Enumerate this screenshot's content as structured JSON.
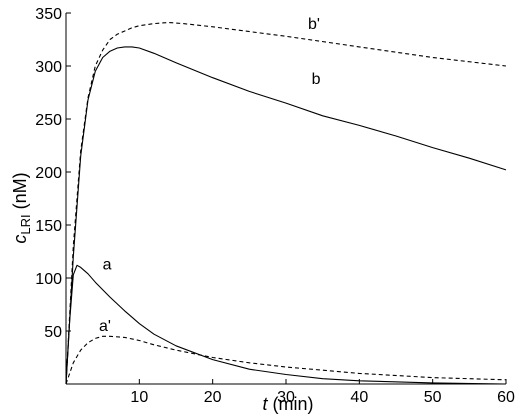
{
  "chart_data": {
    "type": "line",
    "xlabel_var": "t",
    "xlabel_unit": " (min)",
    "ylabel_var": "c",
    "ylabel_sub": "LRI",
    "ylabel_unit": " (nM)",
    "xlim": [
      0,
      60
    ],
    "ylim": [
      0,
      350
    ],
    "grid": false,
    "x_ticks": [
      10,
      20,
      30,
      40,
      50,
      60
    ],
    "y_ticks": [
      50,
      100,
      150,
      200,
      250,
      300,
      350
    ],
    "series": [
      {
        "name": "b'",
        "style": "dashed",
        "color": "#000000",
        "x": [
          0,
          1,
          2,
          3,
          4,
          5,
          6,
          7,
          8,
          9,
          10,
          12,
          14,
          16,
          20,
          30,
          40,
          50,
          60
        ],
        "y": [
          0,
          130,
          220,
          270,
          300,
          315,
          325,
          330,
          333,
          336,
          338,
          340,
          341,
          340,
          337,
          328,
          318,
          308,
          300
        ]
      },
      {
        "name": "b",
        "style": "solid",
        "color": "#000000",
        "x": [
          0,
          1,
          2,
          3,
          4,
          5,
          6,
          7,
          8,
          9,
          10,
          12,
          15,
          20,
          25,
          30,
          35,
          40,
          45,
          50,
          55,
          60
        ],
        "y": [
          0,
          120,
          215,
          268,
          295,
          308,
          314,
          317,
          318,
          318,
          317,
          312,
          303,
          289,
          276,
          265,
          253,
          244,
          234,
          223,
          213,
          202
        ]
      },
      {
        "name": "a",
        "style": "solid",
        "color": "#000000",
        "x": [
          0,
          0.5,
          1,
          1.5,
          2,
          3,
          4,
          5,
          6,
          8,
          10,
          12,
          15,
          20,
          25,
          30,
          35,
          40,
          50,
          60
        ],
        "y": [
          0,
          60,
          103,
          112,
          110,
          104,
          96,
          89,
          82,
          69,
          57,
          47,
          36,
          23,
          14,
          9,
          5,
          3,
          1,
          0
        ]
      },
      {
        "name": "a'",
        "style": "dashed",
        "color": "#000000",
        "x": [
          0,
          1,
          2,
          3,
          4,
          5,
          6,
          8,
          10,
          12,
          15,
          20,
          25,
          30,
          40,
          50,
          60
        ],
        "y": [
          0,
          20,
          32,
          39,
          43,
          45,
          45,
          44,
          41,
          37,
          32,
          25,
          20,
          16,
          10,
          6,
          4
        ]
      }
    ],
    "annotations": [
      {
        "text": "b'",
        "x": 33,
        "y": 335
      },
      {
        "text": "b",
        "x": 33.5,
        "y": 283
      },
      {
        "text": "a",
        "x": 5,
        "y": 108
      },
      {
        "text": "a'",
        "x": 4.5,
        "y": 50
      }
    ]
  }
}
